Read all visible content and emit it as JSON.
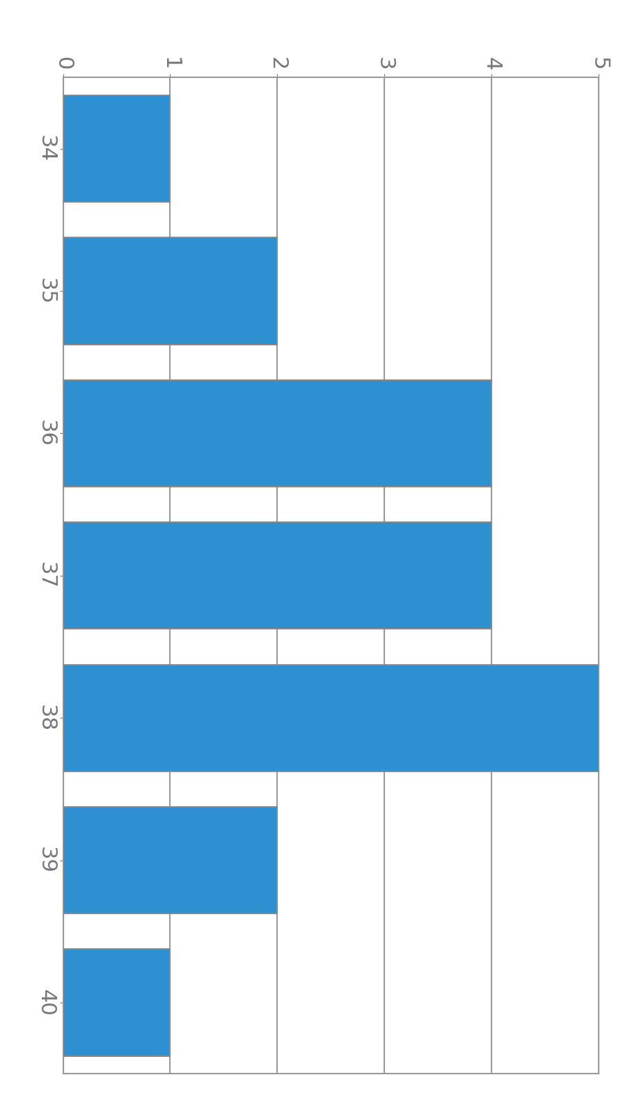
{
  "chart_data": {
    "type": "bar",
    "orientation": "horizontal",
    "categories": [
      "34",
      "35",
      "36",
      "37",
      "38",
      "39",
      "40"
    ],
    "values": [
      1,
      2,
      4,
      4,
      5,
      2,
      1
    ],
    "color": "#2e8fd1",
    "xlim": [
      0,
      5
    ],
    "xticks": [
      0,
      1,
      2,
      3,
      4,
      5
    ],
    "grid": true
  }
}
